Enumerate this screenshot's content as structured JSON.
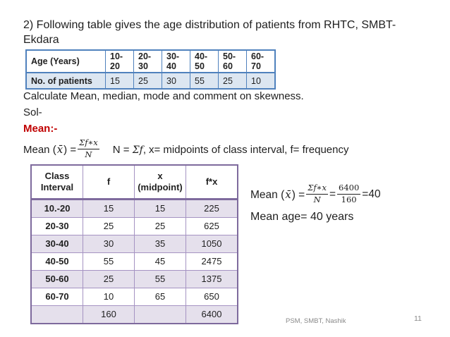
{
  "title": {
    "line1": "2) Following table gives the age distribution of patients from RHTC, SMBT-",
    "line2": "Ekdara"
  },
  "age_table": {
    "header_label": "Age (Years)",
    "row_label": "No. of patients",
    "age_groups": [
      "10-20",
      "20-30",
      "30-40",
      "40-50",
      "50-60",
      "60-70"
    ],
    "patient_counts": [
      "15",
      "25",
      "30",
      "55",
      "25",
      "10"
    ]
  },
  "instruction": "Calculate Mean, median, mode and comment on skewness.",
  "solution_label": "Sol-",
  "mean_heading": "Mean:-",
  "formula": {
    "lhs_prefix": "Mean (",
    "xbar": "x̄",
    "lhs_suffix": ") =",
    "numerator": "Σf∗x",
    "denominator": "N",
    "note_prefix": "N = ",
    "note_sigma": "Σf",
    "note_comma": ",",
    "note_rest": "x= midpoints of class interval, f= frequency"
  },
  "calc_table": {
    "headers": [
      "Class Interval",
      "f",
      "x (midpoint)",
      "f*x"
    ],
    "rows": [
      [
        "10.-20",
        "15",
        "15",
        "225"
      ],
      [
        "20-30",
        "25",
        "25",
        "625"
      ],
      [
        "30-40",
        "30",
        "35",
        "1050"
      ],
      [
        "40-50",
        "55",
        "45",
        "2475"
      ],
      [
        "50-60",
        "25",
        "55",
        "1375"
      ],
      [
        "60-70",
        "10",
        "65",
        "650"
      ],
      [
        "",
        "160",
        "",
        "6400"
      ]
    ],
    "total_f": "160",
    "total_fx": "6400"
  },
  "mean_calc": {
    "lhs_prefix": "Mean (",
    "xbar": "x̄",
    "lhs_suffix": ") =",
    "frac1_num": "Σf∗x",
    "frac1_den": "N",
    "equals": "=",
    "frac2_num": "6400",
    "frac2_den": "160",
    "result": "=40",
    "conclusion": "Mean age= 40 years"
  },
  "footer": {
    "left_text": "PSM, SMBT, Nashik",
    "page_number": "11"
  },
  "colors": {
    "text": "#1f1f1f",
    "heading_red": "#c00000",
    "blue_border": "#4f81bd",
    "blue_fill": "#dce6f1",
    "purple_border": "#7e6a9d",
    "purple_grid": "#a593c2",
    "lavender_fill": "#e5e0ec",
    "footer_gray": "#898989"
  }
}
